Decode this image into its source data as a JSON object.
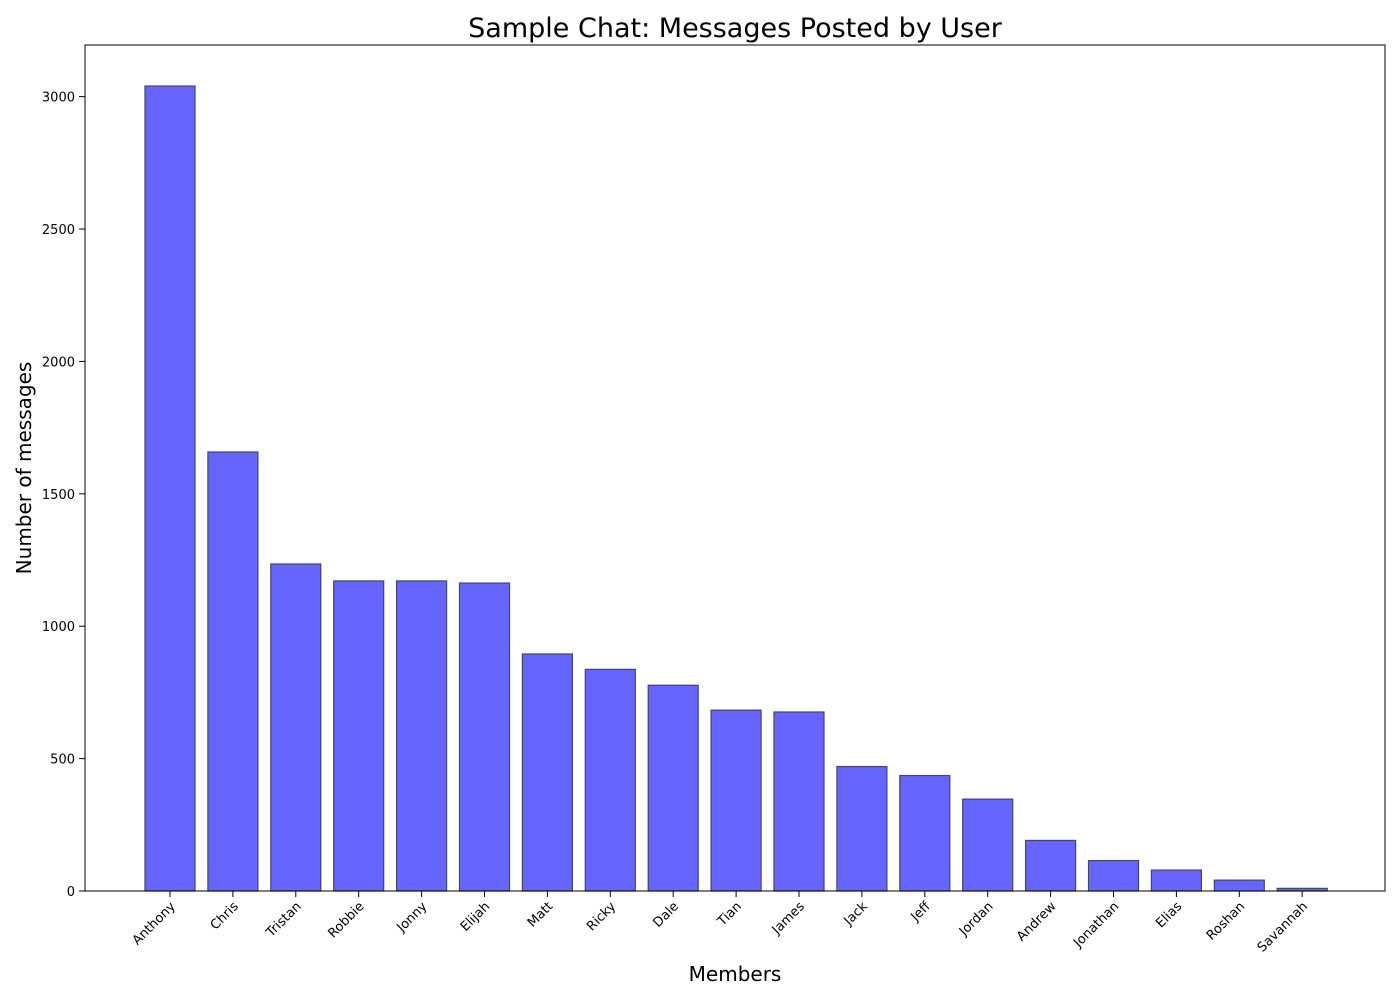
{
  "chart_data": {
    "type": "bar",
    "title": "Sample Chat: Messages Posted by User",
    "xlabel": "Members",
    "ylabel": "Number of messages",
    "categories": [
      "Anthony",
      "Chris",
      "Tristan",
      "Robbie",
      "Jonny",
      "Elijah",
      "Matt",
      "Ricky",
      "Dale",
      "Tian",
      "James",
      "Jack",
      "Jeff",
      "Jordan",
      "Andrew",
      "Jonathan",
      "Elias",
      "Roshan",
      "Savannah"
    ],
    "values": [
      3040,
      1658,
      1235,
      1171,
      1171,
      1163,
      895,
      837,
      777,
      683,
      676,
      470,
      436,
      347,
      191,
      115,
      79,
      41,
      10
    ],
    "ylim": [
      0,
      3195
    ],
    "yticks": [
      0,
      500,
      1000,
      1500,
      2000,
      2500,
      3000
    ],
    "grid": false,
    "bar_color": "#6666ff",
    "edge_color": "#444466"
  }
}
